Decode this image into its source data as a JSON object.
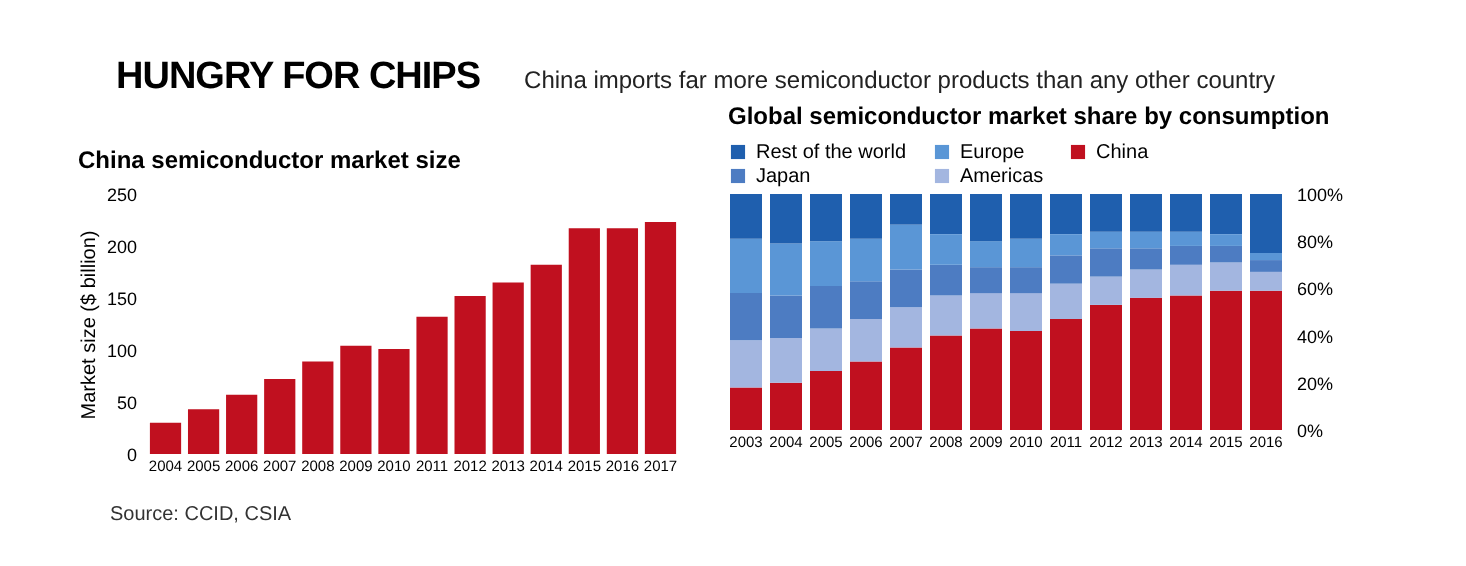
{
  "chart_data": [
    {
      "type": "bar",
      "title": "China semiconductor market size",
      "ylabel": "Market size ($ billion)",
      "annotations": [
        "HUNGRY FOR CHIPS",
        "China imports far more semiconductor products than any other country",
        "Source: CCID, CSIA"
      ],
      "categories": [
        "2004",
        "2005",
        "2006",
        "2007",
        "2008",
        "2009",
        "2010",
        "2011",
        "2012",
        "2013",
        "2014",
        "2015",
        "2016",
        "2017"
      ],
      "values": [
        30,
        43,
        57,
        72,
        89,
        104,
        101,
        132,
        152,
        165,
        182,
        217,
        217,
        223
      ],
      "color": "#c0101f",
      "ylim": [
        0,
        250
      ],
      "yticks": [
        0,
        50,
        100,
        150,
        200,
        250
      ],
      "grid": false
    },
    {
      "type": "bar",
      "title": "Global semiconductor market share by consumption",
      "stacked": true,
      "legend": "top left",
      "categories": [
        "2003",
        "2004",
        "2005",
        "2006",
        "2007",
        "2008",
        "2009",
        "2010",
        "2011",
        "2012",
        "2013",
        "2014",
        "2015",
        "2016"
      ],
      "series": [
        {
          "name": "China",
          "color": "#c0101f",
          "values": [
            18,
            20,
            25,
            29,
            35,
            40,
            43,
            42,
            47,
            53,
            56,
            57,
            59,
            59
          ]
        },
        {
          "name": "Americas",
          "color": "#a3b6e0",
          "values": [
            20,
            19,
            18,
            18,
            17,
            17,
            15,
            16,
            15,
            12,
            12,
            13,
            12,
            8
          ]
        },
        {
          "name": "Japan",
          "color": "#4d7cc2",
          "values": [
            20,
            18,
            18,
            16,
            16,
            13,
            11,
            11,
            12,
            12,
            9,
            8,
            7,
            5
          ]
        },
        {
          "name": "Europe",
          "color": "#5a96d6",
          "values": [
            23,
            22,
            19,
            18,
            19,
            13,
            11,
            12,
            9,
            7,
            7,
            6,
            5,
            3
          ]
        },
        {
          "name": "Rest of the world",
          "color": "#1f5fae",
          "values": [
            19,
            21,
            20,
            19,
            13,
            17,
            20,
            19,
            17,
            16,
            16,
            16,
            17,
            25
          ]
        }
      ],
      "ylim": [
        0,
        100
      ],
      "yticks": [
        {
          "value": 0,
          "label": "0%"
        },
        {
          "value": 20,
          "label": "20%"
        },
        {
          "value": 40,
          "label": "40%"
        },
        {
          "value": 60,
          "label": "60%"
        },
        {
          "value": 80,
          "label": "80%"
        },
        {
          "value": 100,
          "label": "100%"
        }
      ],
      "grid": false
    }
  ]
}
